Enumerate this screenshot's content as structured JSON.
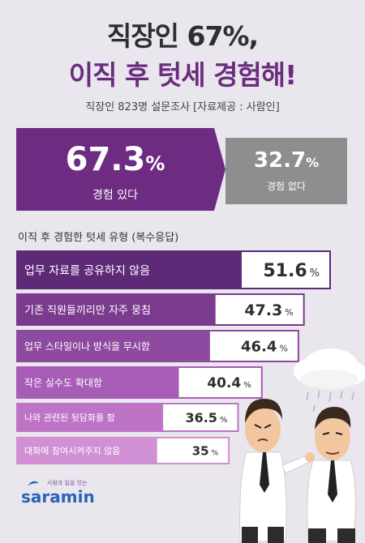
{
  "header": {
    "title_line1": "직장인 67%,",
    "title_line2": "이직 후 텃세 경험해!",
    "subtitle": "직장인 823명 설문조사 [자료제공 : 사람인]"
  },
  "summary": {
    "experienced": {
      "value": "67.3",
      "unit": "%",
      "label": "경험 있다"
    },
    "not_experienced": {
      "value": "32.7",
      "unit": "%",
      "label": "경험 없다"
    }
  },
  "chart_data": {
    "type": "bar",
    "title": "이직 후 경험한 텃세 유형 (복수응답)",
    "categories": [
      "업무 자료를 공유하지 않음",
      "기존 직원들끼리만 자주 뭉침",
      "업무 스타일이나 방식을 무시함",
      "작은 실수도 확대함",
      "나와 관련된 뒷담화를 함",
      "대화에 참여시켜주지 않음"
    ],
    "values": [
      51.6,
      47.3,
      46.4,
      40.4,
      36.5,
      35
    ],
    "value_labels": [
      "51.6",
      "47.3",
      "46.4",
      "40.4",
      "36.5",
      "35"
    ],
    "unit": "%",
    "colors": [
      "#5e2a78",
      "#7a3a8e",
      "#8e4aa0",
      "#a75cb6",
      "#bd74c6",
      "#d18fd4"
    ]
  },
  "logo": {
    "text": "saramin",
    "tagline": "사람과 일을 잇는"
  }
}
